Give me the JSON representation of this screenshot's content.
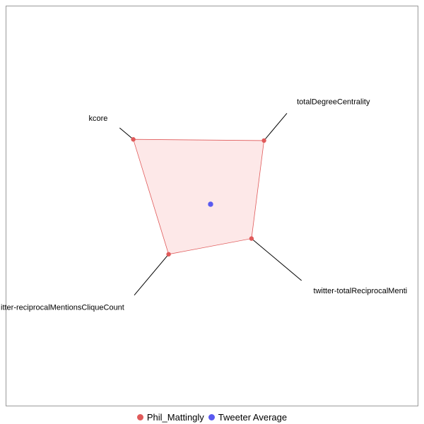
{
  "chart_data": {
    "type": "radar",
    "axes": [
      {
        "name": "totalDegreeCentrality",
        "label_anchor": "start"
      },
      {
        "name": "twitter-totalReciprocalMentions",
        "display_label": "twitter-totalReciprocalMenti",
        "label_anchor": "start"
      },
      {
        "name": "twitter-reciprocalMentionsCliqueCount",
        "display_label": "itter-reciprocalMentionsCliqueCount",
        "label_anchor": "end"
      },
      {
        "name": "kcore",
        "label_anchor": "end"
      }
    ],
    "series": [
      {
        "name": "Phil_Mattingly",
        "color": "#e05a5a",
        "fill": "#fde8e8",
        "values": [
          0.7,
          0.45,
          0.55,
          0.85
        ]
      },
      {
        "name": "Tweeter Average",
        "color": "#5a5af0",
        "values": [
          0,
          0,
          0,
          0
        ]
      }
    ],
    "legend_position": "bottom",
    "grid": false
  }
}
